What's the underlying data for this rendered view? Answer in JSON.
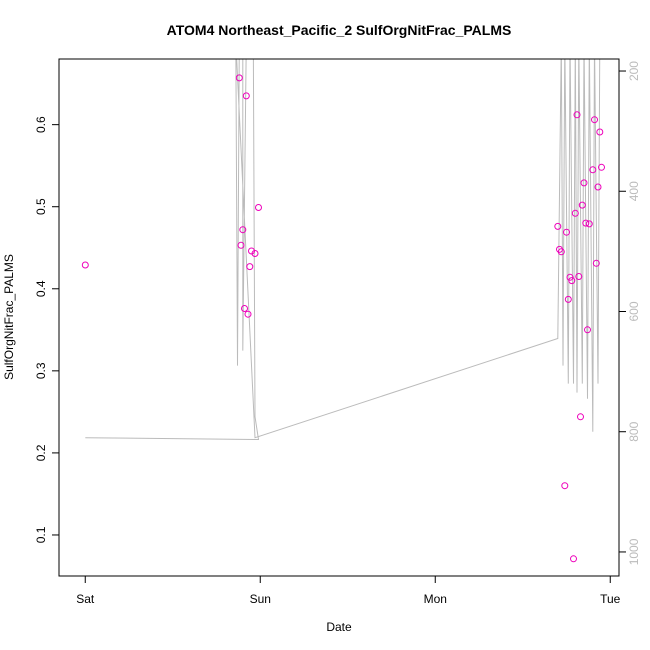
{
  "chart_data": {
    "type": "scatter",
    "title": "ATOM4 Northeast_Pacific_2 SulfOrgNitFrac_PALMS",
    "xlabel": "Date",
    "ylabel": "SulfOrgNitFrac_PALMS",
    "x_ticks": [
      {
        "value": 0,
        "label": "Sat"
      },
      {
        "value": 1,
        "label": "Sun"
      },
      {
        "value": 2,
        "label": "Mon"
      },
      {
        "value": 3,
        "label": "Tue"
      }
    ],
    "y_ticks": [
      {
        "value": 0.1,
        "label": "0.1"
      },
      {
        "value": 0.2,
        "label": "0.2"
      },
      {
        "value": 0.3,
        "label": "0.3"
      },
      {
        "value": 0.4,
        "label": "0.4"
      },
      {
        "value": 0.5,
        "label": "0.5"
      },
      {
        "value": 0.6,
        "label": "0.6"
      }
    ],
    "y2_ticks": [
      {
        "value": 200,
        "label": "200"
      },
      {
        "value": 400,
        "label": "400"
      },
      {
        "value": 600,
        "label": "600"
      },
      {
        "value": 800,
        "label": "800"
      },
      {
        "value": 1000,
        "label": "1000"
      }
    ],
    "xlim": [
      -0.15,
      3.05
    ],
    "ylim": [
      0.05,
      0.68
    ],
    "y2lim": [
      1040,
      180
    ],
    "y2_reversed": true,
    "point_color": "#ee00bb",
    "line_color": "#bbbbbb",
    "axis_label_color": "#000000",
    "y2_label_color": "#bbbbbb",
    "series": [
      {
        "values": [
          [
            0.0,
            0.429
          ],
          [
            0.88,
            0.657
          ],
          [
            0.89,
            0.453
          ],
          [
            0.9,
            0.472
          ],
          [
            0.91,
            0.376
          ],
          [
            0.92,
            0.635
          ],
          [
            0.93,
            0.369
          ],
          [
            0.94,
            0.427
          ],
          [
            0.95,
            0.446
          ],
          [
            0.97,
            0.443
          ],
          [
            0.99,
            0.499
          ],
          [
            2.7,
            0.476
          ],
          [
            2.71,
            0.448
          ],
          [
            2.72,
            0.445
          ],
          [
            2.74,
            0.16
          ],
          [
            2.75,
            0.469
          ],
          [
            2.76,
            0.387
          ],
          [
            2.77,
            0.414
          ],
          [
            2.78,
            0.41
          ],
          [
            2.79,
            0.071
          ],
          [
            2.8,
            0.492
          ],
          [
            2.81,
            0.612
          ],
          [
            2.82,
            0.415
          ],
          [
            2.83,
            0.244
          ],
          [
            2.84,
            0.502
          ],
          [
            2.85,
            0.529
          ],
          [
            2.86,
            0.48
          ],
          [
            2.87,
            0.35
          ],
          [
            2.88,
            0.479
          ],
          [
            2.9,
            0.545
          ],
          [
            2.91,
            0.606
          ],
          [
            2.92,
            0.431
          ],
          [
            2.93,
            0.524
          ],
          [
            2.94,
            0.591
          ],
          [
            2.95,
            0.548
          ]
        ]
      },
      {
        "axis": "right",
        "values": [
          [
            0.0,
            810
          ],
          [
            0.99,
            813
          ],
          [
            0.97,
            775
          ],
          [
            0.96,
            150
          ],
          [
            0.92,
            150
          ],
          [
            0.9,
            665
          ],
          [
            0.9,
            150
          ],
          [
            0.88,
            150
          ],
          [
            0.87,
            690
          ],
          [
            0.86,
            150
          ],
          [
            0.97,
            810
          ],
          [
            2.7,
            645
          ],
          [
            2.72,
            150
          ],
          [
            2.73,
            690
          ],
          [
            2.74,
            150
          ],
          [
            2.76,
            720
          ],
          [
            2.77,
            150
          ],
          [
            2.79,
            720
          ],
          [
            2.8,
            150
          ],
          [
            2.81,
            735
          ],
          [
            2.82,
            150
          ],
          [
            2.84,
            720
          ],
          [
            2.85,
            150
          ],
          [
            2.87,
            745
          ],
          [
            2.88,
            150
          ],
          [
            2.9,
            800
          ],
          [
            2.91,
            150
          ],
          [
            2.93,
            720
          ],
          [
            2.94,
            150
          ]
        ]
      }
    ]
  }
}
